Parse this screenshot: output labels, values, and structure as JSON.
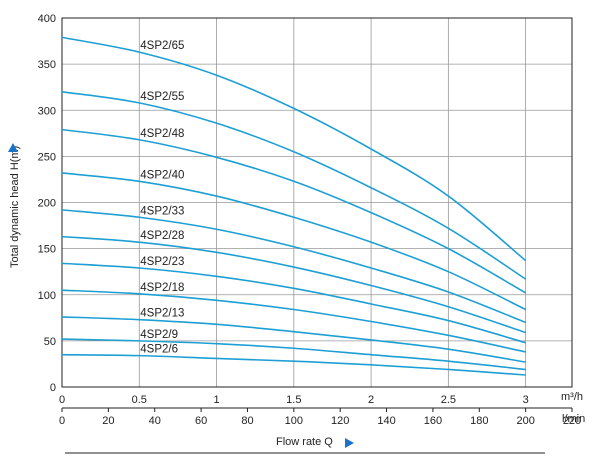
{
  "chart_data": {
    "type": "line",
    "xlabel": "Flow rate  Q",
    "ylabel": "Total dynamic head H(m)",
    "x_unit_primary": "m³/h",
    "x_unit_secondary": "l/min",
    "xlim": [
      0,
      3
    ],
    "ylim": [
      0,
      400
    ],
    "x_ticks_primary": [
      "0",
      "0.5",
      "1",
      "1.5",
      "2",
      "2.5",
      "3"
    ],
    "x_ticks_secondary": [
      "0",
      "20",
      "40",
      "60",
      "80",
      "100",
      "120",
      "140",
      "160",
      "180",
      "200",
      "220"
    ],
    "y_ticks": [
      "0",
      "50",
      "100",
      "150",
      "200",
      "250",
      "300",
      "350",
      "400"
    ],
    "grid": true,
    "colors": {
      "curve": "#1e9fd4",
      "grid": "#999999",
      "axis": "#222222",
      "arrow": "#1a73c9"
    },
    "series": [
      {
        "name": "4SP2/65",
        "x": [
          0,
          0.5,
          1,
          1.5,
          2,
          2.5,
          3
        ],
        "values": [
          379,
          363,
          338,
          302,
          258,
          207,
          137
        ],
        "label_x": 0.5
      },
      {
        "name": "4SP2/55",
        "x": [
          0,
          0.5,
          1,
          1.5,
          2,
          2.5,
          3
        ],
        "values": [
          320,
          308,
          286,
          255,
          216,
          172,
          117
        ],
        "label_x": 0.5
      },
      {
        "name": "4SP2/48",
        "x": [
          0,
          0.5,
          1,
          1.5,
          2,
          2.5,
          3
        ],
        "values": [
          279,
          268,
          249,
          223,
          189,
          150,
          102
        ],
        "label_x": 0.5
      },
      {
        "name": "4SP2/40",
        "x": [
          0,
          0.5,
          1,
          1.5,
          2,
          2.5,
          3
        ],
        "values": [
          232,
          223,
          207,
          184,
          157,
          125,
          84
        ],
        "label_x": 0.5
      },
      {
        "name": "4SP2/33",
        "x": [
          0,
          0.5,
          1,
          1.5,
          2,
          2.5,
          3
        ],
        "values": [
          192,
          184,
          171,
          152,
          129,
          103,
          70
        ],
        "label_x": 0.5
      },
      {
        "name": "4SP2/28",
        "x": [
          0,
          0.5,
          1,
          1.5,
          2,
          2.5,
          3
        ],
        "values": [
          163,
          157,
          146,
          130,
          110,
          87,
          59
        ],
        "label_x": 0.5
      },
      {
        "name": "4SP2/23",
        "x": [
          0,
          0.5,
          1,
          1.5,
          2,
          2.5,
          3
        ],
        "values": [
          134,
          129,
          120,
          107,
          90,
          72,
          48
        ],
        "label_x": 0.5
      },
      {
        "name": "4SP2/18",
        "x": [
          0,
          0.5,
          1,
          1.5,
          2,
          2.5,
          3
        ],
        "values": [
          105,
          101,
          94,
          84,
          71,
          56,
          38
        ],
        "label_x": 0.5
      },
      {
        "name": "4SP2/13",
        "x": [
          0,
          0.5,
          1,
          1.5,
          2,
          2.5,
          3
        ],
        "values": [
          76,
          73,
          68,
          60,
          51,
          41,
          27
        ],
        "label_x": 0.5
      },
      {
        "name": "4SP2/9",
        "x": [
          0,
          0.5,
          1,
          1.5,
          2,
          2.5,
          3
        ],
        "values": [
          52,
          50,
          47,
          42,
          35,
          28,
          19
        ],
        "label_x": 0.5
      },
      {
        "name": "4SP2/6",
        "x": [
          0,
          0.5,
          1,
          1.5,
          2,
          2.5,
          3
        ],
        "values": [
          35,
          34,
          31,
          28,
          24,
          19,
          13
        ],
        "label_x": 0.5
      }
    ]
  }
}
